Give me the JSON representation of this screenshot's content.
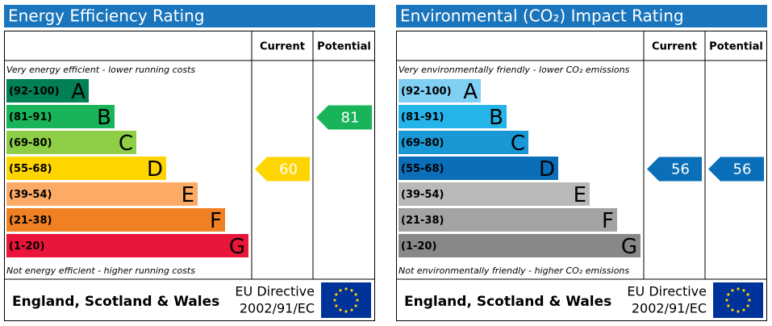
{
  "panels": [
    {
      "title": "Energy Efficiency Rating",
      "headers": [
        "Current",
        "Potential"
      ],
      "top_note": "Very energy efficient - lower running costs",
      "bottom_note": "Not energy efficient - higher running costs",
      "bands": [
        {
          "range": "(92-100)",
          "letter": "A",
          "color": "#008054"
        },
        {
          "range": "(81-91)",
          "letter": "B",
          "color": "#19b459"
        },
        {
          "range": "(69-80)",
          "letter": "C",
          "color": "#8dce46"
        },
        {
          "range": "(55-68)",
          "letter": "D",
          "color": "#ffd500"
        },
        {
          "range": "(39-54)",
          "letter": "E",
          "color": "#fcaa65"
        },
        {
          "range": "(21-38)",
          "letter": "F",
          "color": "#ef8023"
        },
        {
          "range": "(1-20)",
          "letter": "G",
          "color": "#e9153b"
        }
      ],
      "current": 60,
      "potential": 81,
      "footer": {
        "region": "England, Scotland & Wales",
        "directive": [
          "EU Directive",
          "2002/91/EC"
        ]
      }
    },
    {
      "title": "Environmental (CO₂) Impact Rating",
      "headers": [
        "Current",
        "Potential"
      ],
      "top_note": "Very environmentally friendly - lower CO₂ emissions",
      "bottom_note": "Not environmentally friendly - higher CO₂ emissions",
      "bands": [
        {
          "range": "(92-100)",
          "letter": "A",
          "color": "#7fd0f2"
        },
        {
          "range": "(81-91)",
          "letter": "B",
          "color": "#24b4e9"
        },
        {
          "range": "(69-80)",
          "letter": "C",
          "color": "#1a97d5"
        },
        {
          "range": "(55-68)",
          "letter": "D",
          "color": "#0a6fb8"
        },
        {
          "range": "(39-54)",
          "letter": "E",
          "color": "#b9b9b9"
        },
        {
          "range": "(21-38)",
          "letter": "F",
          "color": "#a3a3a3"
        },
        {
          "range": "(1-20)",
          "letter": "G",
          "color": "#888888"
        }
      ],
      "current": 56,
      "potential": 56,
      "footer": {
        "region": "England, Scotland & Wales",
        "directive": [
          "EU Directive",
          "2002/91/EC"
        ]
      }
    }
  ]
}
